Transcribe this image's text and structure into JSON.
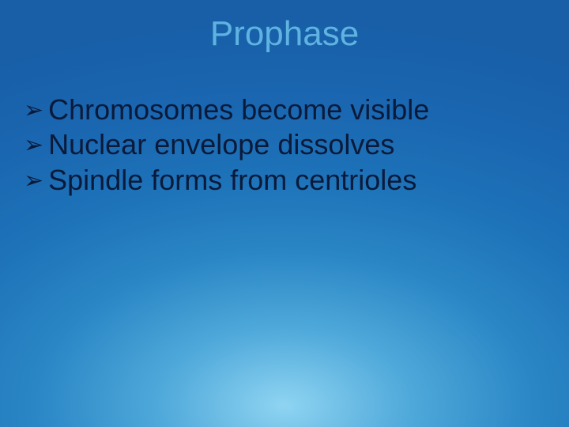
{
  "slide": {
    "title": "Prophase",
    "bullets": [
      "Chromosomes become visible",
      "Nuclear envelope dissolves",
      "Spindle forms from centrioles"
    ],
    "colors": {
      "title_color": "#5fb3e0",
      "bullet_text_color": "#0a1a3a",
      "bullet_icon_color": "#0a1a3a",
      "background_gradient": {
        "center": "#8fd4f2",
        "mid1": "#4fa9da",
        "mid2": "#2a86c5",
        "mid3": "#1d72b8",
        "outer": "#185fa8"
      }
    },
    "typography": {
      "title_fontsize": 44,
      "bullet_fontsize": 36,
      "font_family": "Arial"
    },
    "bullet_glyph": "➢"
  }
}
